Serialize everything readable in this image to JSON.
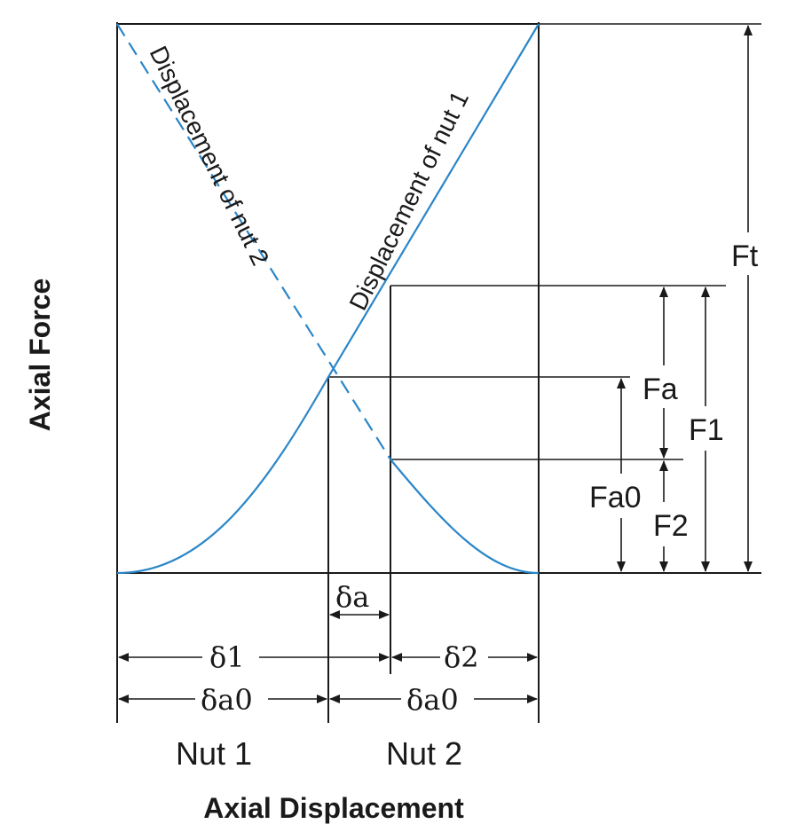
{
  "labels": {
    "curve_nut1": "Displacement of nut 1",
    "curve_nut2": "Displacement of nut 2",
    "y_axis": "Axial Force",
    "x_axis": "Axial Displacement",
    "nut1": "Nut 1",
    "nut2": "Nut 2",
    "delta_a": "δa",
    "delta_1": "δ1",
    "delta_2": "δ2",
    "delta_a0_left": "δa0",
    "delta_a0_right": "δa0",
    "Ft": "Ft",
    "F1": "F1",
    "F2": "F2",
    "Fa": "Fa",
    "Fa0": "Fa0"
  },
  "colors": {
    "curve": "#2a86c8",
    "lines": "#1a1a1a"
  }
}
